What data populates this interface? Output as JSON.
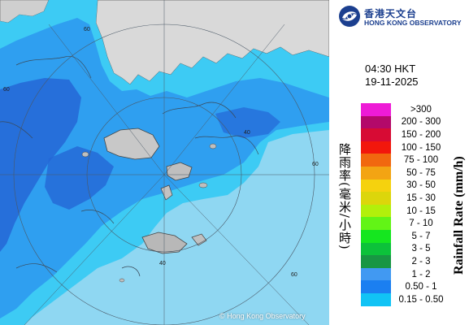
{
  "header": {
    "org_name_zh": "香港天文台",
    "org_name_en": "HONG KONG OBSERVATORY",
    "brand_color": "#1b3f8f"
  },
  "timestamp": {
    "time": "04:30 HKT",
    "date": "19-11-2025"
  },
  "map": {
    "range_ring_labels": [
      "60",
      "60",
      "60",
      "40",
      "40",
      "60"
    ],
    "copyright": "© Hong Kong Observatory",
    "sea_color": "#8fd7f2",
    "land_color": "#d9d9d9",
    "rain_colors": {
      "light": "#3dcbf4",
      "medium": "#2f9ff0",
      "heavy": "#2466d6"
    }
  },
  "legend": {
    "title_zh": "降雨率(毫米/小時)",
    "title_en": "Rainfall Rate (mm/h)",
    "items": [
      {
        "label": ">300",
        "color": "#ee1bd6"
      },
      {
        "label": "200 - 300",
        "color": "#b3096a"
      },
      {
        "label": "150 - 200",
        "color": "#d70b34"
      },
      {
        "label": "100 - 150",
        "color": "#f2170c"
      },
      {
        "label": "75 - 100",
        "color": "#f1680f"
      },
      {
        "label": "50 - 75",
        "color": "#f3a413"
      },
      {
        "label": "30 - 50",
        "color": "#f5d20e"
      },
      {
        "label": "15 - 30",
        "color": "#dcd60b"
      },
      {
        "label": "10 - 15",
        "color": "#b2f00b"
      },
      {
        "label": "7 - 10",
        "color": "#62f416"
      },
      {
        "label": "5 - 7",
        "color": "#15e61f"
      },
      {
        "label": "3 - 5",
        "color": "#0cc23a"
      },
      {
        "label": "2 - 3",
        "color": "#189643"
      },
      {
        "label": "1 - 2",
        "color": "#4199f2"
      },
      {
        "label": "0.50 - 1",
        "color": "#1b7ff1"
      },
      {
        "label": "0.15 - 0.50",
        "color": "#11c3f5"
      }
    ]
  }
}
